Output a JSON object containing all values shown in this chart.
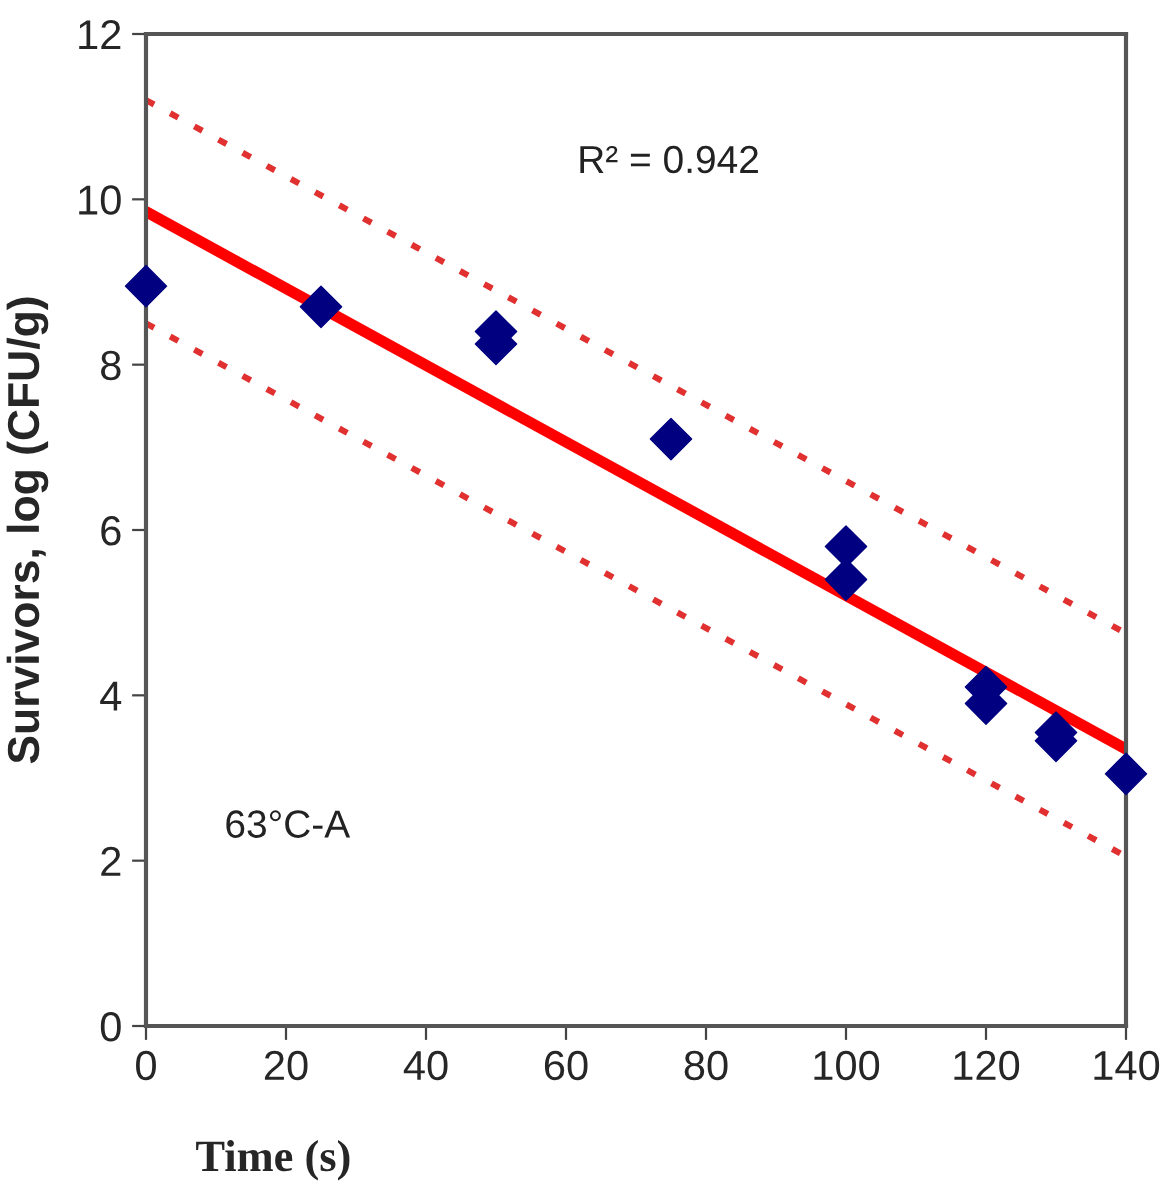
{
  "chart_data": {
    "type": "scatter",
    "xlabel": "Time (s)",
    "ylabel": "Survivors, log (CFU/g)",
    "annotations": [
      "R² = 0.942",
      "63°C-A"
    ],
    "xlim": [
      0,
      140
    ],
    "xticks": [
      0,
      20,
      40,
      60,
      80,
      100,
      120,
      140
    ],
    "ylim": [
      0,
      12
    ],
    "yticks": [
      0,
      2,
      4,
      6,
      8,
      10,
      12
    ],
    "grid": false,
    "legend": false,
    "series": [
      {
        "color": "#000080",
        "marker": "diamond",
        "x": [
          0,
          25,
          50,
          50,
          75,
          100,
          100,
          120,
          120,
          130,
          130,
          140
        ],
        "values": [
          8.95,
          8.7,
          8.25,
          8.4,
          7.1,
          5.8,
          5.4,
          4.1,
          3.9,
          3.55,
          3.45,
          3.05
        ]
      },
      {
        "type": "line",
        "color": "#ff0000",
        "line_style": "solid",
        "x": [
          0,
          140
        ],
        "values": [
          9.85,
          3.35
        ]
      },
      {
        "type": "line",
        "color": "#e03030",
        "line_style": "dotted",
        "x": [
          0,
          140
        ],
        "values": [
          11.2,
          4.75
        ]
      },
      {
        "type": "line",
        "color": "#e03030",
        "line_style": "dotted",
        "x": [
          0,
          140
        ],
        "values": [
          8.5,
          2.05
        ]
      }
    ]
  }
}
